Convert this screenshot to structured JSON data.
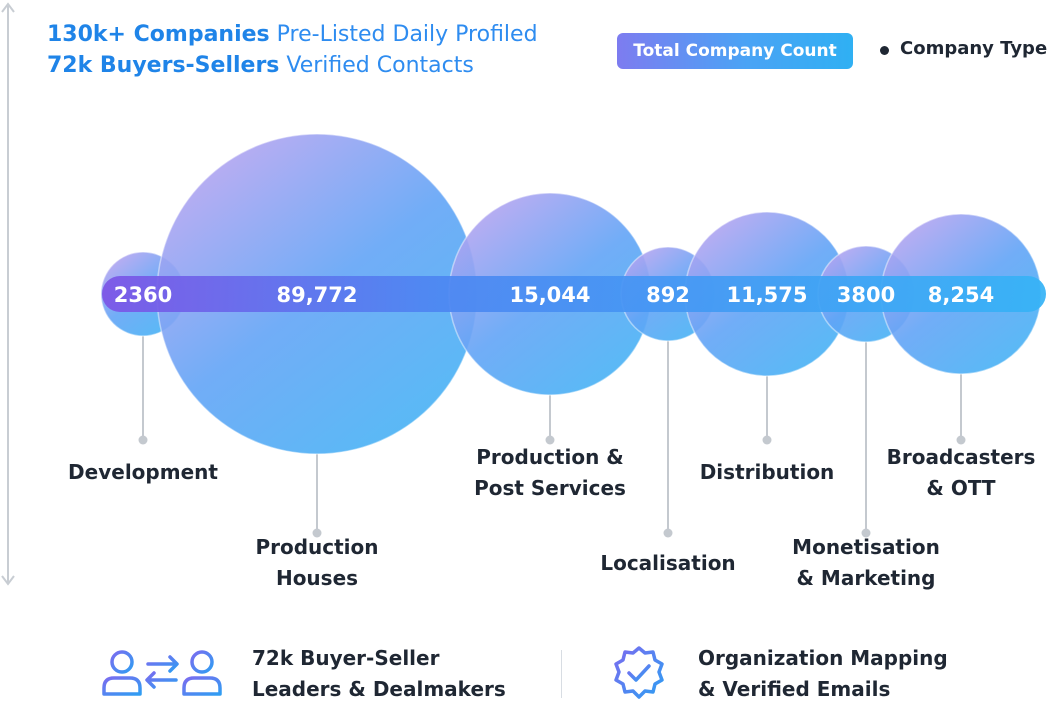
{
  "header": {
    "line1_bold": "130k+ Companies",
    "line1_rest": " Pre-Listed Daily Profiled",
    "line2_bold": "72k Buyers-Sellers",
    "line2_rest": " Verified Contacts"
  },
  "legend": {
    "count_label": "Total Company Count",
    "type_label": "Company Type"
  },
  "colors": {
    "accent": "#1f84e8",
    "bubble_light": "#b3a3f1",
    "bubble_mid": "#5ea6f6",
    "bubble_dark": "#4aa8f4",
    "bar_start": "#7a57e8",
    "bar_end": "#37b2f6"
  },
  "chart_data": {
    "type": "bubble",
    "categories": [
      "Development",
      "Production Houses",
      "Production & Post Services",
      "Localisation",
      "Distribution",
      "Monetisation & Marketing",
      "Broadcasters & OTT"
    ],
    "values": [
      2360,
      89772,
      15044,
      892,
      11575,
      3800,
      8254
    ],
    "value_labels": [
      "2360",
      "89,772",
      "15,044",
      "892",
      "11,575",
      "3800",
      "8,254"
    ],
    "label_lines": [
      [
        "Development"
      ],
      [
        "Production",
        "Houses"
      ],
      [
        "Production &",
        "Post Services"
      ],
      [
        "Localisation"
      ],
      [
        "Distribution"
      ],
      [
        "Monetisation",
        "& Marketing"
      ],
      [
        "Broadcasters",
        "& OTT"
      ]
    ],
    "label_row": [
      "upper",
      "lower",
      "upper",
      "lower",
      "upper",
      "lower",
      "upper"
    ]
  },
  "features": [
    {
      "icon": "buyer-seller-exchange-icon",
      "line1": "72k Buyer-Seller",
      "line2": "Leaders & Dealmakers"
    },
    {
      "icon": "verified-badge-icon",
      "line1": "Organization Mapping",
      "line2": "& Verified Emails"
    }
  ]
}
